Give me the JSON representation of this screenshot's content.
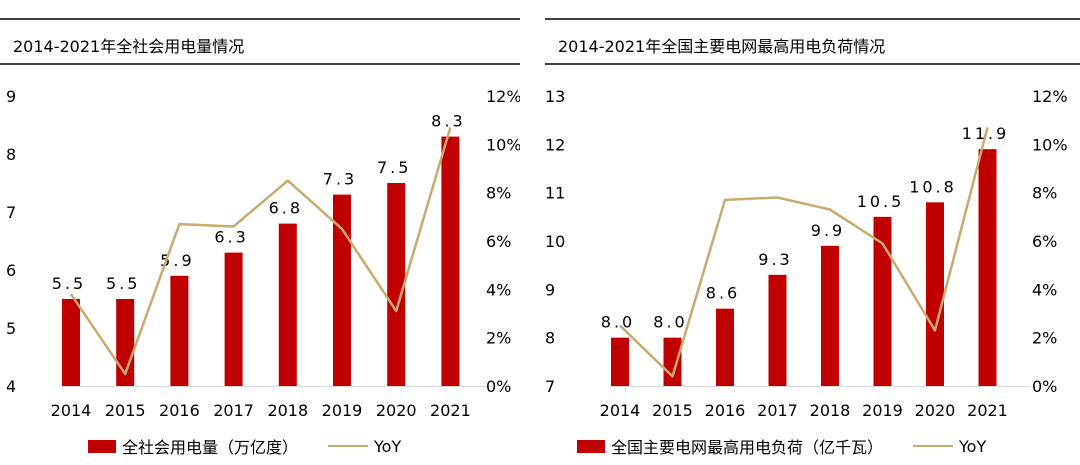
{
  "colors": {
    "bar": "#c00000",
    "line": "#c8aa6e",
    "rule": "#000000"
  },
  "chart_data": [
    {
      "type": "bar",
      "title": "2014-2021年全社会用电量情况",
      "categories": [
        "2014",
        "2015",
        "2016",
        "2017",
        "2018",
        "2019",
        "2020",
        "2021"
      ],
      "series": [
        {
          "name": "全社会用电量（万亿度）",
          "axis": "left",
          "values": [
            5.5,
            5.5,
            5.9,
            6.3,
            6.8,
            7.3,
            7.5,
            8.3
          ],
          "labels": [
            "5.5",
            "5.5",
            "5.9",
            "6.3",
            "6.8",
            "7.3",
            "7.5",
            "8.3"
          ]
        },
        {
          "name": "YoY",
          "type": "line",
          "axis": "right",
          "values": [
            3.8,
            0.5,
            6.7,
            6.6,
            8.5,
            6.5,
            3.1,
            10.7
          ]
        }
      ],
      "ylim_left": [
        4,
        9
      ],
      "yticks_left": [
        "4",
        "5",
        "6",
        "7",
        "8",
        "9"
      ],
      "ylim_right": [
        0,
        12
      ],
      "yticks_right": [
        "0%",
        "2%",
        "4%",
        "6%",
        "8%",
        "10%",
        "12%"
      ],
      "grid": false,
      "legend": "bottom"
    },
    {
      "type": "bar",
      "title": "2014-2021年全国主要电网最高用电负荷情况",
      "categories": [
        "2014",
        "2015",
        "2016",
        "2017",
        "2018",
        "2019",
        "2020",
        "2021"
      ],
      "series": [
        {
          "name": "全国主要电网最高用电负荷（亿千瓦）",
          "axis": "left",
          "values": [
            8.0,
            8.0,
            8.6,
            9.3,
            9.9,
            10.5,
            10.8,
            11.9
          ],
          "labels": [
            "8.0",
            "8.0",
            "8.6",
            "9.3",
            "9.9",
            "10.5",
            "10.8",
            "11.9"
          ]
        },
        {
          "name": "YoY",
          "type": "line",
          "axis": "right",
          "values": [
            2.5,
            0.4,
            7.7,
            7.8,
            7.3,
            5.9,
            2.3,
            10.7
          ]
        }
      ],
      "ylim_left": [
        7,
        13
      ],
      "yticks_left": [
        "7",
        "8",
        "9",
        "10",
        "11",
        "12",
        "13"
      ],
      "ylim_right": [
        0,
        12
      ],
      "yticks_right": [
        "0%",
        "2%",
        "4%",
        "6%",
        "8%",
        "10%",
        "12%"
      ],
      "grid": false,
      "legend": "bottom"
    }
  ]
}
